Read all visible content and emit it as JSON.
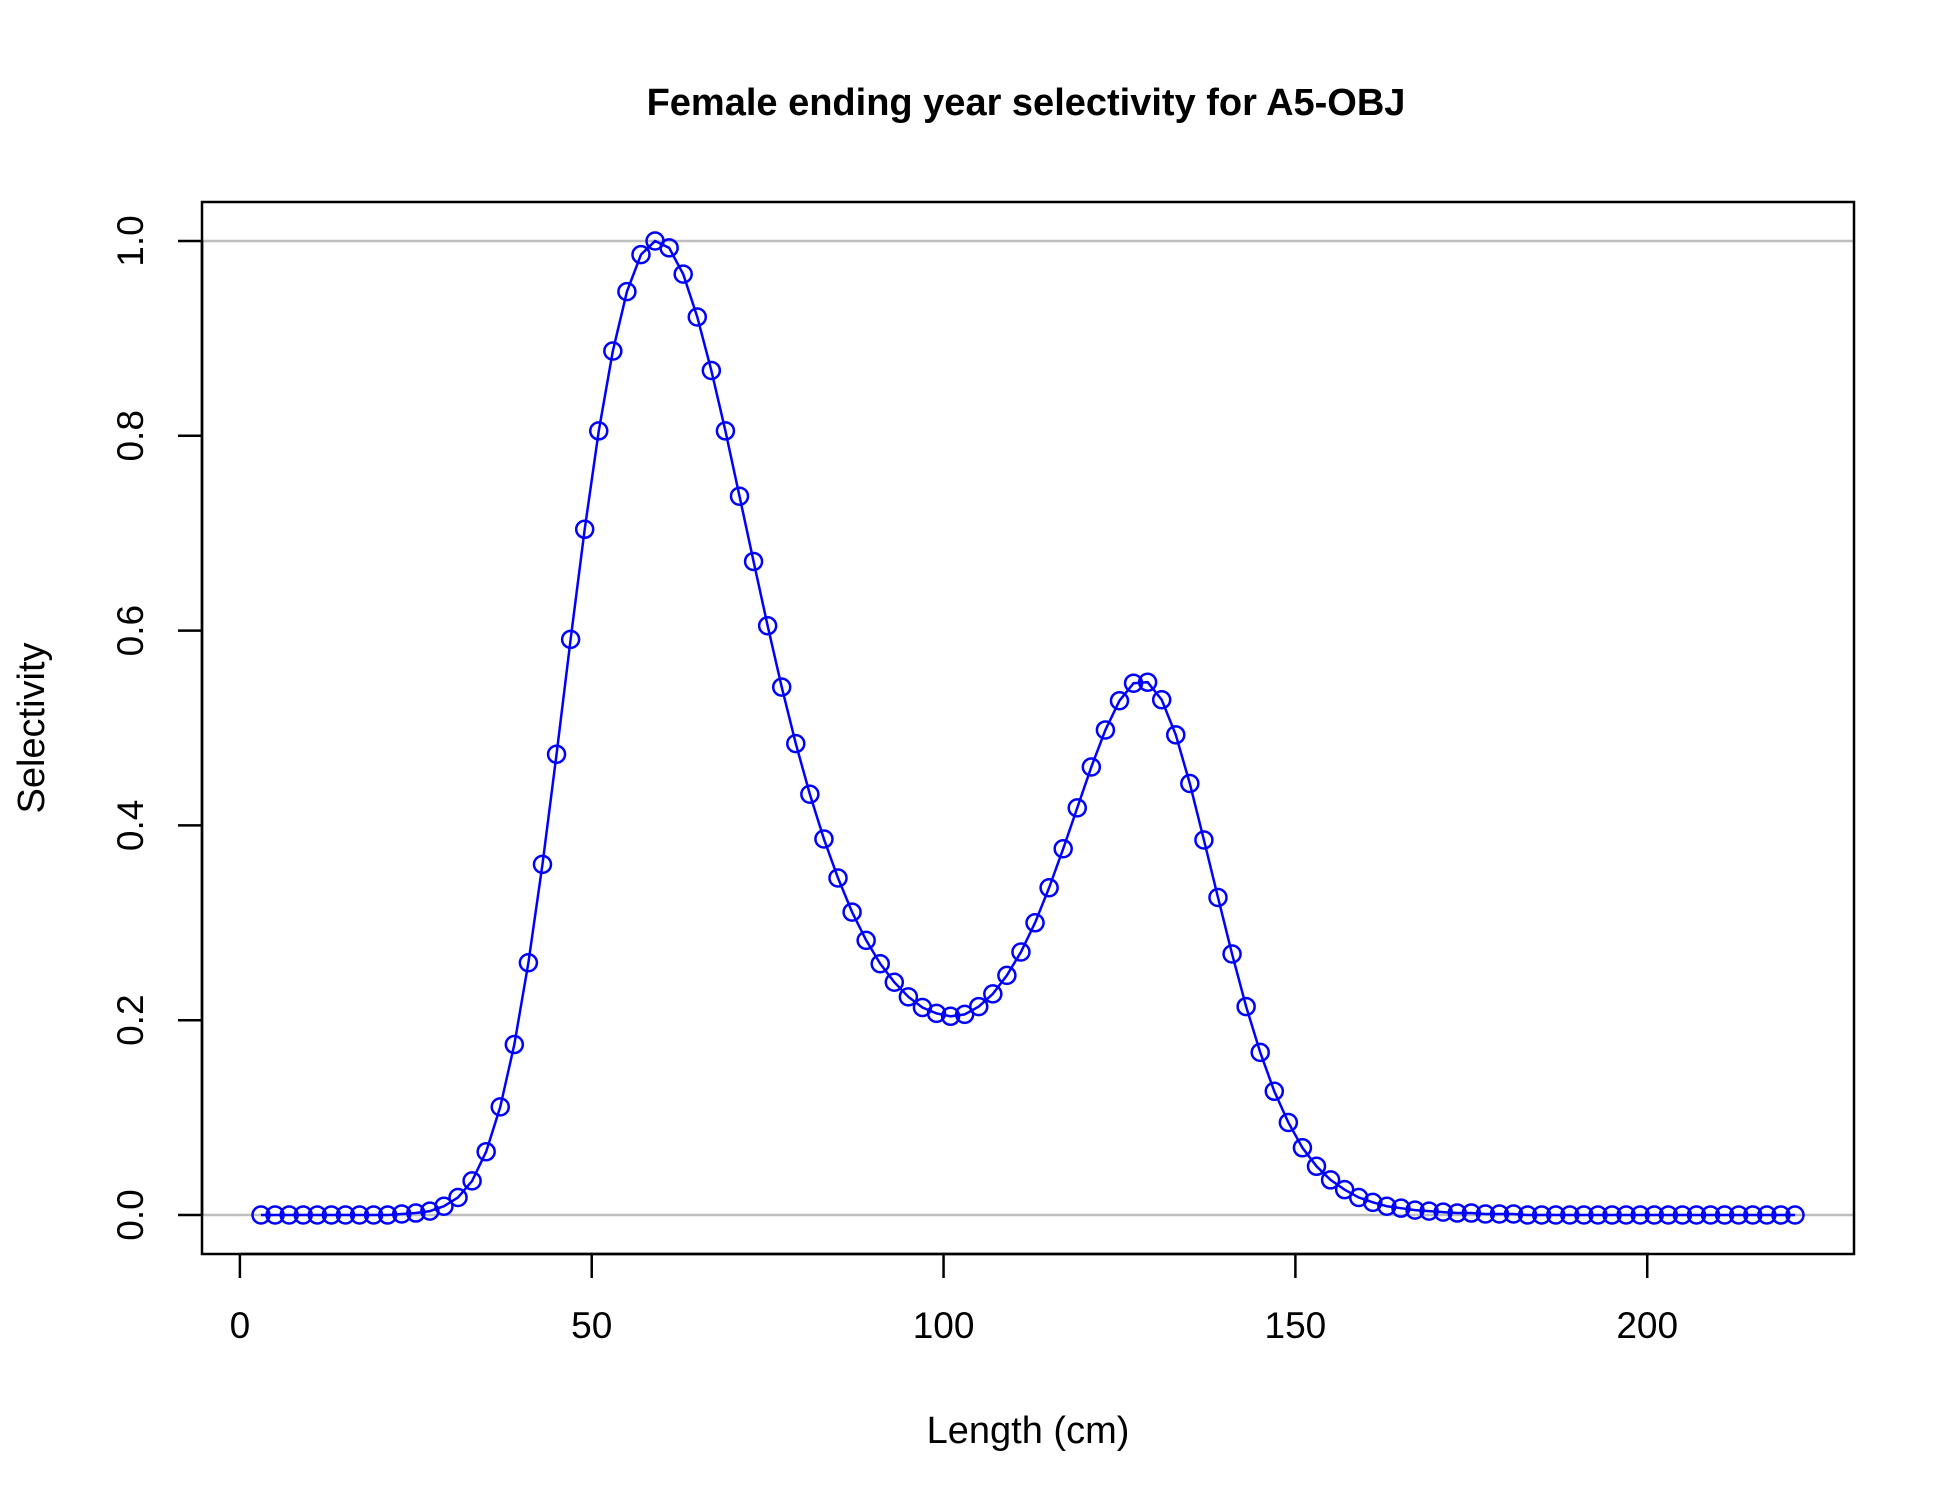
{
  "chart_data": {
    "type": "line",
    "title": "Female ending year selectivity for A5-OBJ",
    "xlabel": "Length (cm)",
    "ylabel": "Selectivity",
    "xlim": [
      3,
      221
    ],
    "ylim": [
      0,
      1
    ],
    "x_ticks": [
      0,
      50,
      100,
      150,
      200
    ],
    "y_ticks": [
      0.0,
      0.2,
      0.4,
      0.6,
      0.8,
      1.0
    ],
    "y_tick_labels": [
      "0.0",
      "0.2",
      "0.4",
      "0.6",
      "0.8",
      "1.0"
    ],
    "reference_lines_y": [
      0,
      1
    ],
    "grid": false,
    "markers": "open-circle",
    "color": "#0000ff",
    "reference_color": "#bebebe",
    "series": [
      {
        "x": [
          3,
          5,
          7,
          9,
          11,
          13,
          15,
          17,
          19,
          21,
          23,
          25,
          27,
          29,
          31,
          33,
          35,
          37,
          39,
          41,
          43,
          45,
          47,
          49,
          51,
          53,
          55,
          57,
          59,
          61,
          63,
          65,
          67,
          69,
          71,
          73,
          75,
          77,
          79,
          81,
          83,
          85,
          87,
          89,
          91,
          93,
          95,
          97,
          99,
          101,
          103,
          105,
          107,
          109,
          111,
          113,
          115,
          117,
          119,
          121,
          123,
          125,
          127,
          129,
          131,
          133,
          135,
          137,
          139,
          141,
          143,
          145,
          147,
          149,
          151,
          153,
          155,
          157,
          159,
          161,
          163,
          165,
          167,
          169,
          171,
          173,
          175,
          177,
          179,
          181,
          183,
          185,
          187,
          189,
          191,
          193,
          195,
          197,
          199,
          201,
          203,
          205,
          207,
          209,
          211,
          213,
          215,
          217,
          219,
          221
        ],
        "y": [
          0.0,
          0.0,
          0.0,
          0.0,
          0.0,
          0.0,
          0.0,
          0.0,
          0.0,
          0.0,
          0.001,
          0.002,
          0.004,
          0.009,
          0.018,
          0.035,
          0.065,
          0.111,
          0.175,
          0.259,
          0.36,
          0.473,
          0.591,
          0.704,
          0.805,
          0.887,
          0.948,
          0.986,
          1.0,
          0.993,
          0.966,
          0.922,
          0.867,
          0.805,
          0.738,
          0.671,
          0.605,
          0.542,
          0.484,
          0.432,
          0.386,
          0.346,
          0.311,
          0.282,
          0.258,
          0.239,
          0.224,
          0.213,
          0.207,
          0.204,
          0.206,
          0.214,
          0.227,
          0.246,
          0.27,
          0.3,
          0.336,
          0.376,
          0.418,
          0.46,
          0.498,
          0.528,
          0.546,
          0.547,
          0.529,
          0.493,
          0.443,
          0.385,
          0.326,
          0.268,
          0.214,
          0.167,
          0.127,
          0.095,
          0.069,
          0.05,
          0.036,
          0.026,
          0.018,
          0.013,
          0.009,
          0.007,
          0.005,
          0.004,
          0.003,
          0.002,
          0.002,
          0.001,
          0.001,
          0.001,
          0.0,
          0.0,
          0.0,
          0.0,
          0.0,
          0.0,
          0.0,
          0.0,
          0.0,
          0.0,
          0.0,
          0.0,
          0.0,
          0.0,
          0.0,
          0.0,
          0.0,
          0.0,
          0.0,
          0.0
        ]
      }
    ]
  }
}
